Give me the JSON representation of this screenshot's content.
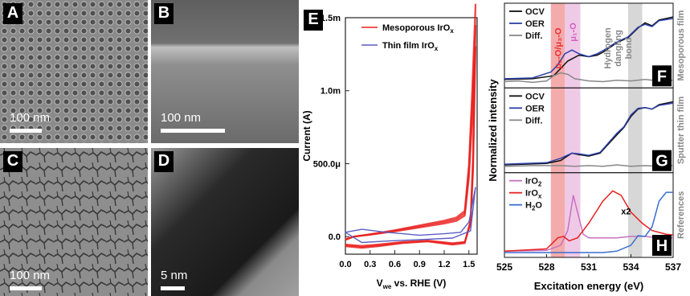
{
  "micrographs": [
    {
      "letter": "A",
      "scale": "100 nm"
    },
    {
      "letter": "B",
      "scale": "100 nm"
    },
    {
      "letter": "C",
      "scale": "100 nm"
    },
    {
      "letter": "D",
      "scale": "5 nm"
    }
  ],
  "panel_e": {
    "letter": "E"
  },
  "panel_f_letters": [
    "F",
    "G",
    "H"
  ],
  "chart_data": [
    {
      "type": "line",
      "panel": "E",
      "xlabel_main": "V",
      "xlabel_sub": "we",
      "xlabel_rest": " vs. RHE (V)",
      "ylabel": "Current (A)",
      "xlim": [
        0.0,
        1.6
      ],
      "ylim": [
        -0.00012,
        0.0015
      ],
      "x_ticks": [
        "0.0",
        "0.3",
        "0.6",
        "0.9",
        "1.2",
        "1.5"
      ],
      "x_tick_values": [
        0.0,
        0.3,
        0.6,
        0.9,
        1.2,
        1.5
      ],
      "y_ticks": [
        "0.0",
        "500.0μ",
        "1.0m",
        "1.5m"
      ],
      "y_tick_values": [
        0.0,
        0.0005,
        0.001,
        0.0015
      ],
      "legend": [
        {
          "name": "Mesoporous IrO",
          "sub": "x",
          "color": "#e8201e"
        },
        {
          "name": "Thin film IrO",
          "sub": "x",
          "color": "#5a5fc4"
        }
      ],
      "series": [
        {
          "name": "Mesoporous IrOx",
          "color": "#e8201e",
          "anodic": [
            [
              0.0,
              -2e-05
            ],
            [
              0.1,
              0.0
            ],
            [
              0.3,
              1.5e-05
            ],
            [
              0.6,
              4e-05
            ],
            [
              0.9,
              7e-05
            ],
            [
              1.2,
              0.0001
            ],
            [
              1.35,
              0.00012
            ],
            [
              1.45,
              0.00016
            ],
            [
              1.5,
              0.00045
            ],
            [
              1.54,
              0.0009
            ],
            [
              1.58,
              0.00145
            ]
          ],
          "cathodic": [
            [
              1.58,
              0.00145
            ],
            [
              1.55,
              0.0005
            ],
            [
              1.52,
              0.0001
            ],
            [
              1.45,
              -4e-05
            ],
            [
              1.3,
              -5e-05
            ],
            [
              1.0,
              -3e-05
            ],
            [
              0.7,
              -4e-05
            ],
            [
              0.4,
              -6e-05
            ],
            [
              0.2,
              -7e-05
            ],
            [
              0.0,
              -6e-05
            ]
          ]
        },
        {
          "name": "Thin film IrOx",
          "color": "#5a5fc4",
          "anodic": [
            [
              0.0,
              3e-05
            ],
            [
              0.2,
              5e-05
            ],
            [
              0.5,
              3e-05
            ],
            [
              0.9,
              1e-05
            ],
            [
              1.2,
              2e-05
            ],
            [
              1.4,
              3e-05
            ],
            [
              1.5,
              0.0001
            ],
            [
              1.58,
              0.00034
            ]
          ],
          "cathodic": [
            [
              1.58,
              0.00034
            ],
            [
              1.52,
              4e-05
            ],
            [
              1.3,
              -1e-05
            ],
            [
              0.9,
              -2e-05
            ],
            [
              0.5,
              -3e-05
            ],
            [
              0.2,
              -4e-05
            ],
            [
              0.0,
              3e-05
            ]
          ]
        }
      ]
    },
    {
      "type": "line",
      "panel": "F-H",
      "xlabel": "Excitation energy (eV)",
      "ylabel": "Normalized intensity",
      "xlim": [
        525,
        537
      ],
      "x_ticks": [
        "525",
        "528",
        "531",
        "534",
        "537"
      ],
      "x_tick_values": [
        525,
        528,
        531,
        534,
        537
      ],
      "bands": [
        {
          "range": [
            528.3,
            529.3
          ],
          "color": "#f08f8f",
          "label": "μ₂-O/μ₃-O",
          "label_color": "#e83030"
        },
        {
          "range": [
            529.3,
            530.4
          ],
          "color": "#eab8df",
          "label": "μ₁-O",
          "label_color": "#d060c0"
        },
        {
          "range": [
            533.8,
            534.8
          ],
          "color": "#c9c9c9",
          "label": "Hydrogen dangling bond",
          "label_lines": [
            "Hydrogen",
            "dangling",
            "bond"
          ],
          "label_color": "#888888"
        }
      ],
      "subplots": [
        {
          "letter": "F",
          "side_label": "Mesoporous film",
          "legend": [
            {
              "name": "OCV",
              "color": "#111111"
            },
            {
              "name": "OER",
              "color": "#2c3fa8"
            },
            {
              "name": "Diff.",
              "color": "#888888"
            }
          ],
          "series": [
            {
              "name": "OCV",
              "color": "#111111",
              "points": [
                [
                  525,
                  0.05
                ],
                [
                  527,
                  0.06
                ],
                [
                  528.5,
                  0.1
                ],
                [
                  529.5,
                  0.3
                ],
                [
                  530.3,
                  0.38
                ],
                [
                  531,
                  0.36
                ],
                [
                  531.6,
                  0.38
                ],
                [
                  532,
                  0.42
                ],
                [
                  533,
                  0.55
                ],
                [
                  533.8,
                  0.62
                ],
                [
                  534.5,
                  0.75
                ],
                [
                  535,
                  0.82
                ],
                [
                  535.5,
                  0.78
                ],
                [
                  536,
                  0.86
                ],
                [
                  537,
                  0.9
                ]
              ]
            },
            {
              "name": "OER",
              "color": "#2c3fa8",
              "points": [
                [
                  525,
                  0.06
                ],
                [
                  527,
                  0.07
                ],
                [
                  528.3,
                  0.15
                ],
                [
                  528.8,
                  0.25
                ],
                [
                  529.3,
                  0.4
                ],
                [
                  529.8,
                  0.45
                ],
                [
                  530.3,
                  0.4
                ],
                [
                  531,
                  0.36
                ],
                [
                  531.6,
                  0.4
                ],
                [
                  532,
                  0.44
                ],
                [
                  533,
                  0.56
                ],
                [
                  533.8,
                  0.63
                ],
                [
                  534.5,
                  0.76
                ],
                [
                  535,
                  0.8
                ],
                [
                  535.5,
                  0.77
                ],
                [
                  536,
                  0.85
                ],
                [
                  537,
                  0.88
                ]
              ]
            },
            {
              "name": "Diff.",
              "color": "#888888",
              "points": [
                [
                  525,
                  0.02
                ],
                [
                  526,
                  0.03
                ],
                [
                  527,
                  0.01
                ],
                [
                  528,
                  0.03
                ],
                [
                  528.5,
                  0.1
                ],
                [
                  529,
                  0.14
                ],
                [
                  529.5,
                  0.12
                ],
                [
                  530,
                  0.06
                ],
                [
                  531,
                  0.03
                ],
                [
                  532,
                  0.02
                ],
                [
                  533,
                  0.04
                ],
                [
                  534,
                  0.03
                ],
                [
                  535,
                  0.05
                ],
                [
                  536,
                  0.03
                ],
                [
                  537,
                  0.04
                ]
              ]
            }
          ]
        },
        {
          "letter": "G",
          "side_label": "Sputter thin film",
          "legend": [
            {
              "name": "OCV",
              "color": "#111111"
            },
            {
              "name": "OER",
              "color": "#2c3fa8"
            },
            {
              "name": "Diff.",
              "color": "#888888"
            }
          ],
          "series": [
            {
              "name": "OCV",
              "color": "#111111",
              "points": [
                [
                  525,
                  0.04
                ],
                [
                  528,
                  0.06
                ],
                [
                  529,
                  0.1
                ],
                [
                  529.8,
                  0.2
                ],
                [
                  530.3,
                  0.18
                ],
                [
                  531,
                  0.16
                ],
                [
                  531.8,
                  0.2
                ],
                [
                  533,
                  0.45
                ],
                [
                  533.5,
                  0.55
                ],
                [
                  534,
                  0.7
                ],
                [
                  534.5,
                  0.8
                ],
                [
                  535,
                  0.82
                ],
                [
                  535.5,
                  0.8
                ],
                [
                  536,
                  0.86
                ],
                [
                  537,
                  0.9
                ]
              ]
            },
            {
              "name": "OER",
              "color": "#2c3fa8",
              "points": [
                [
                  525,
                  0.05
                ],
                [
                  528,
                  0.07
                ],
                [
                  529,
                  0.13
                ],
                [
                  529.8,
                  0.2
                ],
                [
                  530.3,
                  0.19
                ],
                [
                  531,
                  0.17
                ],
                [
                  531.8,
                  0.21
                ],
                [
                  533,
                  0.47
                ],
                [
                  533.5,
                  0.56
                ],
                [
                  534,
                  0.72
                ],
                [
                  534.5,
                  0.81
                ],
                [
                  535,
                  0.82
                ],
                [
                  535.5,
                  0.8
                ],
                [
                  536,
                  0.85
                ],
                [
                  537,
                  0.88
                ]
              ]
            },
            {
              "name": "Diff.",
              "color": "#888888",
              "points": [
                [
                  525,
                  0.02
                ],
                [
                  527,
                  0.03
                ],
                [
                  529,
                  0.03
                ],
                [
                  530,
                  0.02
                ],
                [
                  531,
                  0.03
                ],
                [
                  532,
                  0.02
                ],
                [
                  533,
                  0.04
                ],
                [
                  534,
                  0.02
                ],
                [
                  535,
                  0.03
                ],
                [
                  536,
                  0.02
                ],
                [
                  537,
                  0.03
                ]
              ]
            }
          ]
        },
        {
          "letter": "H",
          "side_label": "References",
          "annotation": "x2",
          "legend": [
            {
              "name": "IrO",
              "sub": "2",
              "color": "#c870c0"
            },
            {
              "name": "IrO",
              "sub": "x",
              "color": "#e8201e"
            },
            {
              "name": "H",
              "sub": "2",
              "suffix": "O",
              "color": "#3a6fd0"
            }
          ],
          "series": [
            {
              "name": "IrO2",
              "color": "#c870c0",
              "points": [
                [
                  525,
                  0.02
                ],
                [
                  528,
                  0.03
                ],
                [
                  529,
                  0.1
                ],
                [
                  529.5,
                  0.3
                ],
                [
                  529.9,
                  0.78
                ],
                [
                  530.2,
                  0.55
                ],
                [
                  530.6,
                  0.25
                ],
                [
                  531,
                  0.2
                ],
                [
                  532,
                  0.2
                ],
                [
                  533,
                  0.2
                ],
                [
                  534,
                  0.22
                ],
                [
                  535,
                  0.22
                ],
                [
                  536,
                  0.2
                ],
                [
                  537,
                  0.2
                ]
              ]
            },
            {
              "name": "IrOx",
              "color": "#e8201e",
              "points": [
                [
                  525,
                  0.02
                ],
                [
                  528,
                  0.05
                ],
                [
                  528.8,
                  0.2
                ],
                [
                  529.2,
                  0.22
                ],
                [
                  529.6,
                  0.16
                ],
                [
                  530.2,
                  0.2
                ],
                [
                  531,
                  0.4
                ],
                [
                  532,
                  0.7
                ],
                [
                  532.7,
                  0.84
                ],
                [
                  533.3,
                  0.78
                ],
                [
                  534,
                  0.55
                ],
                [
                  534.8,
                  0.4
                ],
                [
                  535.5,
                  0.3
                ],
                [
                  536.5,
                  0.25
                ],
                [
                  537,
                  0.24
                ]
              ]
            },
            {
              "name": "H2O",
              "color": "#3a6fd0",
              "points": [
                [
                  525,
                  0.0
                ],
                [
                  532,
                  0.0
                ],
                [
                  533,
                  0.02
                ],
                [
                  534,
                  0.1
                ],
                [
                  534.5,
                  0.23
                ],
                [
                  535,
                  0.22
                ],
                [
                  535.5,
                  0.35
                ],
                [
                  536,
                  0.7
                ],
                [
                  536.5,
                  0.82
                ],
                [
                  537,
                  0.82
                ]
              ]
            }
          ]
        }
      ]
    }
  ]
}
